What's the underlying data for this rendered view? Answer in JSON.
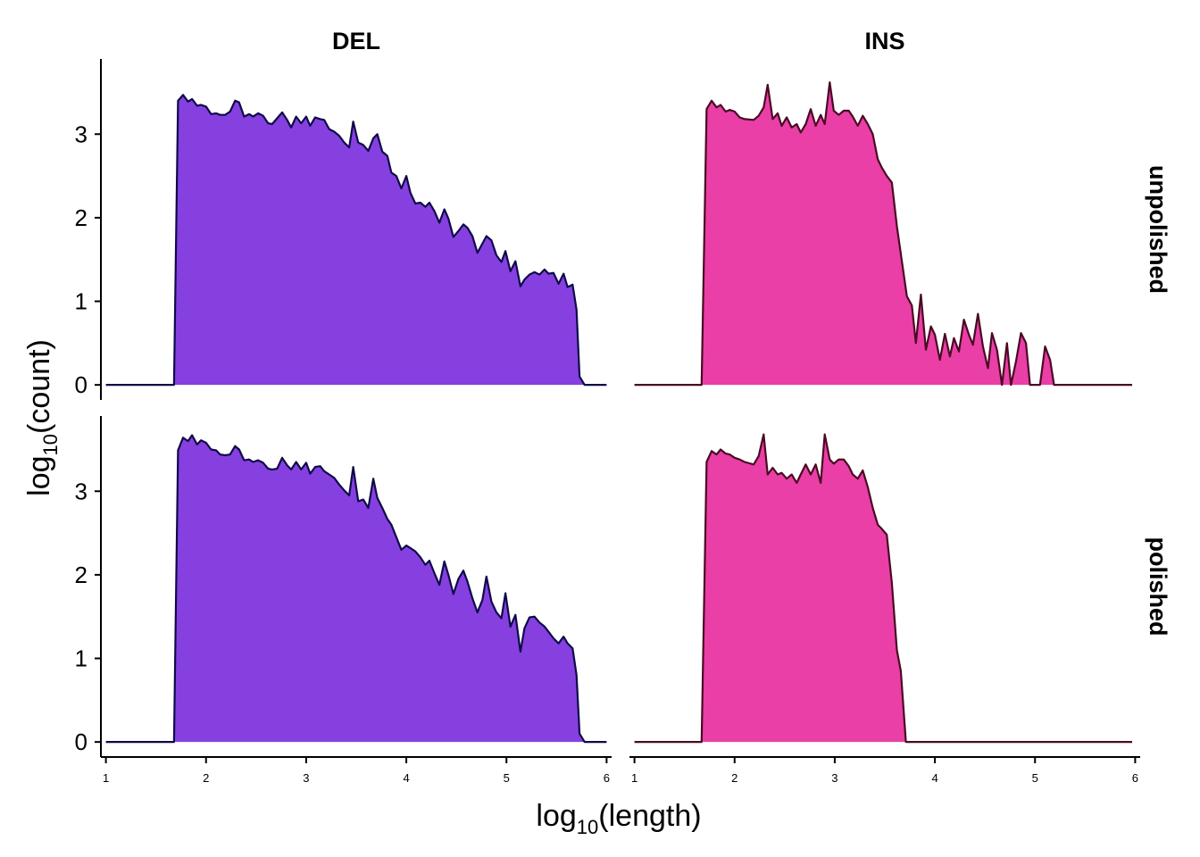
{
  "figure": {
    "xlabel_base": "log",
    "xlabel_sub": "10",
    "xlabel_arg": "(length)",
    "ylabel_base": "log",
    "ylabel_sub": "10",
    "ylabel_arg": "(count)"
  },
  "chart_data": {
    "type": "area",
    "layout": "facet grid 2x2 (columns: sv type, rows: polishing status)",
    "columns": [
      "DEL",
      "INS"
    ],
    "rows": [
      "unpolished",
      "polished"
    ],
    "xlabel": "log10(length)",
    "ylabel": "log10(count)",
    "xlim": [
      0.95,
      6.05
    ],
    "ylim": [
      -0.18,
      3.9
    ],
    "xticks": [
      "1",
      "2",
      "3",
      "4",
      "5",
      "6"
    ],
    "yticks": [
      "0",
      "1",
      "2",
      "3"
    ],
    "grid": false,
    "legend": "none",
    "colors": {
      "DEL": {
        "fill": "#8640E0",
        "line": "#0F0A4A"
      },
      "INS": {
        "fill": "#EA3FA6",
        "line": "#4A0A24"
      }
    },
    "panels": [
      {
        "column": "DEL",
        "row": "unpolished",
        "x": [
          1.0,
          1.68,
          1.72,
          1.77,
          1.82,
          1.86,
          1.91,
          1.95,
          2.0,
          2.05,
          2.1,
          2.14,
          2.19,
          2.24,
          2.29,
          2.33,
          2.38,
          2.43,
          2.47,
          2.52,
          2.57,
          2.62,
          2.66,
          2.71,
          2.76,
          2.81,
          2.85,
          2.9,
          2.95,
          3.0,
          3.04,
          3.09,
          3.14,
          3.18,
          3.23,
          3.28,
          3.33,
          3.38,
          3.43,
          3.47,
          3.52,
          3.57,
          3.62,
          3.67,
          3.71,
          3.76,
          3.81,
          3.85,
          3.9,
          3.95,
          4.0,
          4.04,
          4.09,
          4.14,
          4.19,
          4.23,
          4.28,
          4.33,
          4.38,
          4.42,
          4.47,
          4.52,
          4.57,
          4.61,
          4.66,
          4.71,
          4.76,
          4.8,
          4.85,
          4.9,
          4.95,
          4.99,
          5.04,
          5.09,
          5.14,
          5.18,
          5.23,
          5.28,
          5.33,
          5.38,
          5.42,
          5.47,
          5.52,
          5.57,
          5.61,
          5.66,
          5.7,
          5.73,
          5.78,
          6.0
        ],
        "y": [
          0,
          0,
          3.4,
          3.47,
          3.39,
          3.42,
          3.34,
          3.35,
          3.33,
          3.24,
          3.25,
          3.23,
          3.23,
          3.27,
          3.4,
          3.38,
          3.21,
          3.24,
          3.21,
          3.25,
          3.22,
          3.13,
          3.12,
          3.19,
          3.26,
          3.17,
          3.08,
          3.21,
          3.13,
          3.21,
          3.1,
          3.2,
          3.18,
          3.17,
          3.06,
          3.03,
          2.98,
          2.9,
          2.84,
          3.15,
          2.9,
          2.87,
          2.8,
          2.95,
          3.0,
          2.79,
          2.74,
          2.54,
          2.5,
          2.35,
          2.5,
          2.3,
          2.17,
          2.18,
          2.13,
          2.18,
          2.08,
          1.94,
          2.1,
          1.99,
          1.77,
          1.84,
          1.92,
          1.88,
          1.78,
          1.58,
          1.69,
          1.78,
          1.73,
          1.55,
          1.47,
          1.6,
          1.36,
          1.48,
          1.18,
          1.26,
          1.32,
          1.35,
          1.32,
          1.38,
          1.33,
          1.34,
          1.21,
          1.33,
          1.17,
          1.2,
          0.9,
          0.1,
          0,
          0
        ]
      },
      {
        "column": "INS",
        "row": "unpolished",
        "x": [
          1.0,
          1.67,
          1.72,
          1.77,
          1.82,
          1.86,
          1.91,
          1.95,
          2.0,
          2.05,
          2.1,
          2.19,
          2.24,
          2.29,
          2.33,
          2.38,
          2.43,
          2.47,
          2.52,
          2.57,
          2.62,
          2.66,
          2.71,
          2.76,
          2.81,
          2.86,
          2.9,
          2.95,
          2.99,
          3.04,
          3.09,
          3.14,
          3.18,
          3.23,
          3.28,
          3.33,
          3.38,
          3.43,
          3.47,
          3.52,
          3.57,
          3.62,
          3.72,
          3.77,
          3.81,
          3.86,
          3.91,
          3.96,
          4.0,
          4.05,
          4.1,
          4.15,
          4.19,
          4.24,
          4.29,
          4.34,
          4.38,
          4.43,
          4.48,
          4.53,
          4.57,
          4.62,
          4.67,
          4.72,
          4.76,
          4.81,
          4.86,
          4.91,
          4.95,
          5.0,
          5.05,
          5.1,
          5.15,
          5.19,
          5.24,
          5.29,
          5.34,
          5.39,
          5.43,
          5.48,
          5.97
        ],
        "y": [
          0,
          0,
          3.3,
          3.4,
          3.32,
          3.35,
          3.27,
          3.29,
          3.27,
          3.2,
          3.18,
          3.17,
          3.22,
          3.32,
          3.59,
          3.18,
          3.25,
          3.1,
          3.2,
          3.08,
          3.12,
          3.02,
          3.12,
          3.3,
          3.1,
          3.23,
          3.12,
          3.62,
          3.28,
          3.23,
          3.28,
          3.28,
          3.21,
          3.1,
          3.22,
          3.12,
          3.0,
          2.7,
          2.6,
          2.5,
          2.42,
          1.9,
          1.06,
          0.95,
          0.5,
          1.08,
          0.42,
          0.7,
          0.6,
          0.3,
          0.61,
          0.34,
          0.56,
          0.4,
          0.78,
          0.6,
          0.48,
          0.85,
          0.46,
          0.2,
          0.62,
          0.42,
          0.0,
          0.5,
          0.0,
          0.28,
          0.62,
          0.5,
          0.0,
          0.0,
          0.0,
          0.46,
          0.3,
          0.0,
          0.0,
          0.0,
          0.0,
          0.0,
          0.0,
          0.0,
          0.0
        ]
      },
      {
        "column": "DEL",
        "row": "polished",
        "x": [
          1.0,
          1.68,
          1.72,
          1.77,
          1.82,
          1.86,
          1.91,
          1.95,
          2.0,
          2.05,
          2.1,
          2.14,
          2.19,
          2.24,
          2.29,
          2.33,
          2.38,
          2.43,
          2.47,
          2.52,
          2.57,
          2.62,
          2.66,
          2.71,
          2.76,
          2.81,
          2.85,
          2.9,
          2.95,
          3.0,
          3.04,
          3.09,
          3.14,
          3.18,
          3.23,
          3.28,
          3.33,
          3.38,
          3.43,
          3.47,
          3.52,
          3.57,
          3.62,
          3.67,
          3.71,
          3.76,
          3.81,
          3.85,
          3.9,
          3.95,
          4.0,
          4.04,
          4.09,
          4.14,
          4.19,
          4.23,
          4.28,
          4.33,
          4.38,
          4.42,
          4.47,
          4.52,
          4.57,
          4.61,
          4.66,
          4.71,
          4.76,
          4.8,
          4.85,
          4.9,
          4.95,
          4.99,
          5.04,
          5.09,
          5.14,
          5.18,
          5.23,
          5.28,
          5.33,
          5.38,
          5.42,
          5.47,
          5.52,
          5.57,
          5.61,
          5.66,
          5.7,
          5.73,
          5.78,
          6.0
        ],
        "y": [
          0,
          0,
          3.49,
          3.64,
          3.6,
          3.67,
          3.56,
          3.61,
          3.58,
          3.5,
          3.49,
          3.44,
          3.43,
          3.44,
          3.54,
          3.5,
          3.37,
          3.38,
          3.35,
          3.37,
          3.34,
          3.27,
          3.26,
          3.27,
          3.4,
          3.31,
          3.26,
          3.35,
          3.26,
          3.34,
          3.21,
          3.29,
          3.3,
          3.24,
          3.2,
          3.16,
          3.08,
          3.01,
          2.95,
          3.29,
          2.88,
          2.9,
          2.8,
          3.15,
          2.92,
          2.8,
          2.67,
          2.6,
          2.45,
          2.3,
          2.35,
          2.32,
          2.28,
          2.21,
          2.12,
          2.17,
          2.02,
          1.88,
          2.16,
          2.0,
          1.77,
          1.95,
          2.05,
          1.92,
          1.72,
          1.55,
          1.7,
          1.98,
          1.68,
          1.55,
          1.48,
          1.78,
          1.38,
          1.52,
          1.08,
          1.36,
          1.49,
          1.5,
          1.43,
          1.38,
          1.32,
          1.24,
          1.18,
          1.26,
          1.18,
          1.12,
          0.8,
          0.1,
          0,
          0
        ]
      },
      {
        "column": "INS",
        "row": "polished",
        "x": [
          1.0,
          1.67,
          1.72,
          1.77,
          1.82,
          1.86,
          1.91,
          1.95,
          2.0,
          2.05,
          2.1,
          2.19,
          2.24,
          2.29,
          2.33,
          2.38,
          2.43,
          2.47,
          2.52,
          2.57,
          2.62,
          2.66,
          2.71,
          2.76,
          2.81,
          2.86,
          2.9,
          2.95,
          2.99,
          3.04,
          3.09,
          3.14,
          3.18,
          3.23,
          3.28,
          3.33,
          3.38,
          3.43,
          3.47,
          3.52,
          3.57,
          3.62,
          3.66,
          3.71,
          3.76,
          3.8,
          3.85,
          3.9,
          3.93,
          3.95,
          5.97
        ],
        "y": [
          0,
          0,
          3.35,
          3.48,
          3.44,
          3.5,
          3.45,
          3.44,
          3.4,
          3.38,
          3.35,
          3.32,
          3.42,
          3.68,
          3.2,
          3.28,
          3.2,
          3.22,
          3.15,
          3.2,
          3.1,
          3.2,
          3.32,
          3.2,
          3.32,
          3.1,
          3.68,
          3.38,
          3.33,
          3.38,
          3.38,
          3.3,
          3.2,
          3.15,
          3.25,
          3.05,
          2.8,
          2.6,
          2.55,
          2.48,
          1.9,
          1.1,
          0.85,
          0.0,
          0.0,
          0.0,
          0.0,
          0.0,
          0.0,
          0.0,
          0.0
        ]
      }
    ]
  }
}
